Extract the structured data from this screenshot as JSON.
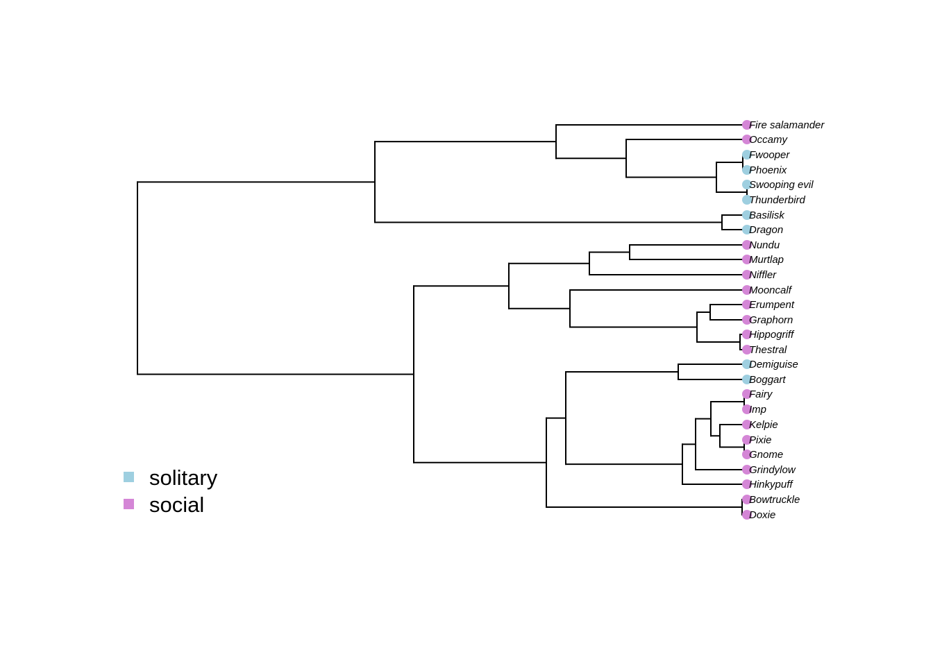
{
  "colors": {
    "solitary": "#9ECFE0",
    "social": "#D486D6",
    "branch": "#000000"
  },
  "legend": [
    {
      "label": "solitary",
      "color_key": "solitary"
    },
    {
      "label": "social",
      "color_key": "social"
    }
  ],
  "tips": [
    {
      "name": "Fire salamander",
      "trait": "social"
    },
    {
      "name": "Occamy",
      "trait": "social"
    },
    {
      "name": "Fwooper",
      "trait": "solitary"
    },
    {
      "name": "Phoenix",
      "trait": "solitary"
    },
    {
      "name": "Swooping evil",
      "trait": "solitary"
    },
    {
      "name": "Thunderbird",
      "trait": "solitary"
    },
    {
      "name": "Basilisk",
      "trait": "solitary"
    },
    {
      "name": "Dragon",
      "trait": "solitary"
    },
    {
      "name": "Nundu",
      "trait": "social"
    },
    {
      "name": "Murtlap",
      "trait": "social"
    },
    {
      "name": "Niffler",
      "trait": "social"
    },
    {
      "name": "Mooncalf",
      "trait": "social"
    },
    {
      "name": "Erumpent",
      "trait": "social"
    },
    {
      "name": "Graphorn",
      "trait": "social"
    },
    {
      "name": "Hippogriff",
      "trait": "social"
    },
    {
      "name": "Thestral",
      "trait": "social"
    },
    {
      "name": "Demiguise",
      "trait": "solitary"
    },
    {
      "name": "Boggart",
      "trait": "solitary"
    },
    {
      "name": "Fairy",
      "trait": "social"
    },
    {
      "name": "Imp",
      "trait": "social"
    },
    {
      "name": "Kelpie",
      "trait": "social"
    },
    {
      "name": "Pixie",
      "trait": "social"
    },
    {
      "name": "Gnome",
      "trait": "social"
    },
    {
      "name": "Grindylow",
      "trait": "social"
    },
    {
      "name": "Hinkypuff",
      "trait": "social"
    },
    {
      "name": "Bowtruckle",
      "trait": "social"
    },
    {
      "name": "Doxie",
      "trait": "social"
    }
  ]
}
